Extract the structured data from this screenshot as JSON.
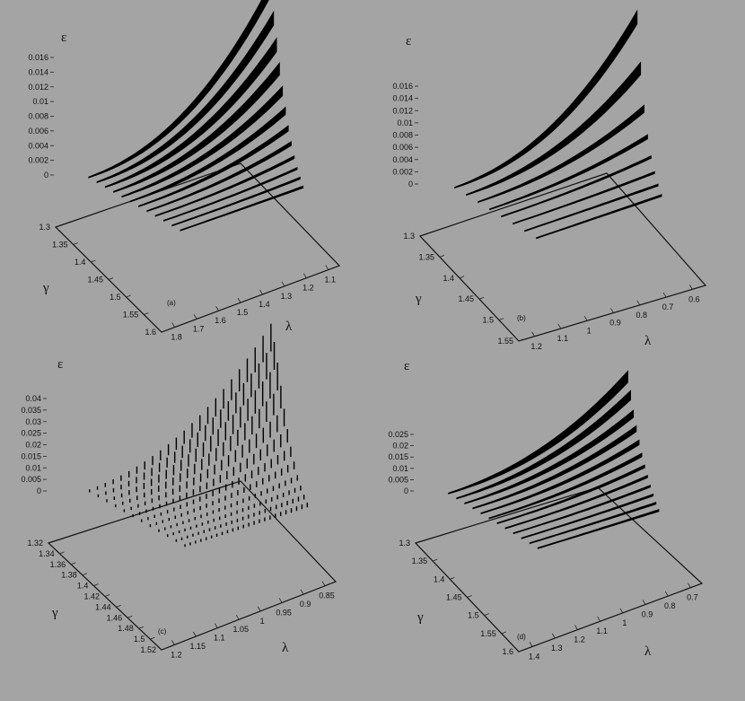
{
  "chart_data": [
    {
      "type": "surface3d",
      "panel_label": "(a)",
      "render": "ribbon",
      "z_label": "ε",
      "y_label": "γ",
      "x_label": "λ",
      "z_ticks": [
        "0.016",
        "0.014",
        "0.012",
        "0.01",
        "0.008",
        "0.006",
        "0.004",
        "0.002",
        "0"
      ],
      "y_ticks": [
        "1.3",
        "1.35",
        "1.4",
        "1.45",
        "1.5",
        "1.55",
        "1.6"
      ],
      "x_ticks": [
        "1.8",
        "1.7",
        "1.6",
        "1.5",
        "1.4",
        "1.3",
        "1.2",
        "1.1"
      ],
      "zlim": [
        0,
        0.016
      ],
      "curves": [
        {
          "eps_max": 0.0165
        },
        {
          "eps_max": 0.0135
        },
        {
          "eps_max": 0.0108
        },
        {
          "eps_max": 0.0085
        },
        {
          "eps_max": 0.0065
        },
        {
          "eps_max": 0.0048
        },
        {
          "eps_max": 0.0034
        },
        {
          "eps_max": 0.0023
        },
        {
          "eps_max": 0.0014
        },
        {
          "eps_max": 0.0008
        },
        {
          "eps_max": 0.0004
        },
        {
          "eps_max": 0.0001
        }
      ]
    },
    {
      "type": "surface3d",
      "panel_label": "(b)",
      "render": "ribbon",
      "z_label": "ε",
      "y_label": "γ",
      "x_label": "λ",
      "z_ticks": [
        "0.016",
        "0.014",
        "0.012",
        "0.01",
        "0.008",
        "0.006",
        "0.004",
        "0.002",
        "0"
      ],
      "y_ticks": [
        "1.3",
        "1.35",
        "1.4",
        "1.45",
        "1.5",
        "1.55"
      ],
      "x_ticks": [
        "1.2",
        "1.1",
        "1",
        "0.9",
        "0.8",
        "0.7",
        "0.6"
      ],
      "zlim": [
        0,
        0.016
      ],
      "curves": [
        {
          "eps_max": 0.0172
        },
        {
          "eps_max": 0.0105
        },
        {
          "eps_max": 0.0058
        },
        {
          "eps_max": 0.003
        },
        {
          "eps_max": 0.0014
        },
        {
          "eps_max": 0.0005
        },
        {
          "eps_max": 0.0001
        },
        {
          "eps_max": 3e-05
        }
      ]
    },
    {
      "type": "surface3d",
      "panel_label": "(c)",
      "render": "hatched",
      "z_label": "ε",
      "y_label": "γ",
      "x_label": "λ",
      "z_ticks": [
        "0.04",
        "0.035",
        "0.03",
        "0.025",
        "0.02",
        "0.015",
        "0.01",
        "0.005",
        "0"
      ],
      "y_ticks": [
        "1.32",
        "1.34",
        "1.36",
        "1.38",
        "1.4",
        "1.42",
        "1.44",
        "1.46",
        "1.48",
        "1.5",
        "1.52"
      ],
      "x_ticks": [
        "1.2",
        "1.15",
        "1.1",
        "1.05",
        "1",
        "0.95",
        "0.9",
        "0.85"
      ],
      "zlim": [
        0,
        0.04
      ],
      "curves": [
        {
          "eps_max": 0.041
        },
        {
          "eps_max": 0.036
        },
        {
          "eps_max": 0.03
        },
        {
          "eps_max": 0.024
        },
        {
          "eps_max": 0.018
        },
        {
          "eps_max": 0.013
        },
        {
          "eps_max": 0.009
        },
        {
          "eps_max": 0.006
        },
        {
          "eps_max": 0.0035
        },
        {
          "eps_max": 0.002
        },
        {
          "eps_max": 0.001
        },
        {
          "eps_max": 0.0005
        }
      ]
    },
    {
      "type": "surface3d",
      "panel_label": "(d)",
      "render": "ribbon",
      "z_label": "ε",
      "y_label": "γ",
      "x_label": "λ",
      "z_ticks": [
        "0.025",
        "0.02",
        "0.015",
        "0.01",
        "0.005",
        "0"
      ],
      "y_ticks": [
        "1.3",
        "1.35",
        "1.4",
        "1.45",
        "1.5",
        "1.55",
        "1.6"
      ],
      "x_ticks": [
        "1.4",
        "1.3",
        "1.2",
        "1.1",
        "1",
        "0.9",
        "0.8",
        "0.7"
      ],
      "zlim": [
        0,
        0.025
      ],
      "curves": [
        {
          "eps_max": 0.026
        },
        {
          "eps_max": 0.021
        },
        {
          "eps_max": 0.016
        },
        {
          "eps_max": 0.0125
        },
        {
          "eps_max": 0.0095
        },
        {
          "eps_max": 0.007
        },
        {
          "eps_max": 0.005
        },
        {
          "eps_max": 0.0035
        },
        {
          "eps_max": 0.0022
        },
        {
          "eps_max": 0.0012
        },
        {
          "eps_max": 0.0005
        },
        {
          "eps_max": 0.0002
        }
      ]
    }
  ]
}
